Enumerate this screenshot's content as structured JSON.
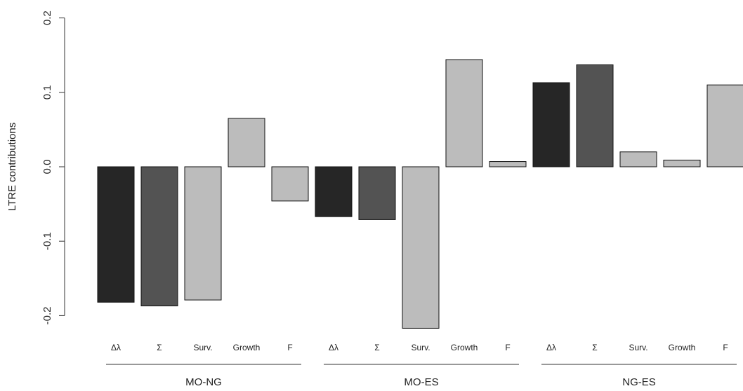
{
  "chart_data": {
    "type": "bar",
    "ylabel": "LTRE contributions",
    "ylim": [
      -0.22,
      0.2
    ],
    "yticks": [
      "-0.2",
      "-0.1",
      "0.0",
      "0.1",
      "0.2"
    ],
    "ytick_values": [
      -0.2,
      -0.1,
      0.0,
      0.1,
      0.2
    ],
    "grid": false,
    "legend": null,
    "groups": [
      {
        "name": "MO-NG",
        "bars": [
          {
            "label": "Δλ",
            "value": -0.182,
            "color": "#262626"
          },
          {
            "label": "Σ",
            "value": -0.187,
            "color": "#535353"
          },
          {
            "label": "Surv.",
            "value": -0.179,
            "color": "#bcbcbc"
          },
          {
            "label": "Growth",
            "value": 0.065,
            "color": "#bcbcbc"
          },
          {
            "label": "F",
            "value": -0.046,
            "color": "#bcbcbc"
          }
        ]
      },
      {
        "name": "MO-ES",
        "bars": [
          {
            "label": "Δλ",
            "value": -0.067,
            "color": "#262626"
          },
          {
            "label": "Σ",
            "value": -0.071,
            "color": "#535353"
          },
          {
            "label": "Surv.",
            "value": -0.217,
            "color": "#bcbcbc"
          },
          {
            "label": "Growth",
            "value": 0.144,
            "color": "#bcbcbc"
          },
          {
            "label": "F",
            "value": 0.007,
            "color": "#bcbcbc"
          }
        ]
      },
      {
        "name": "NG-ES",
        "bars": [
          {
            "label": "Δλ",
            "value": 0.113,
            "color": "#262626"
          },
          {
            "label": "Σ",
            "value": 0.137,
            "color": "#535353"
          },
          {
            "label": "Surv.",
            "value": 0.02,
            "color": "#bcbcbc"
          },
          {
            "label": "Growth",
            "value": 0.009,
            "color": "#bcbcbc"
          },
          {
            "label": "F",
            "value": 0.11,
            "color": "#bcbcbc"
          }
        ]
      }
    ]
  }
}
